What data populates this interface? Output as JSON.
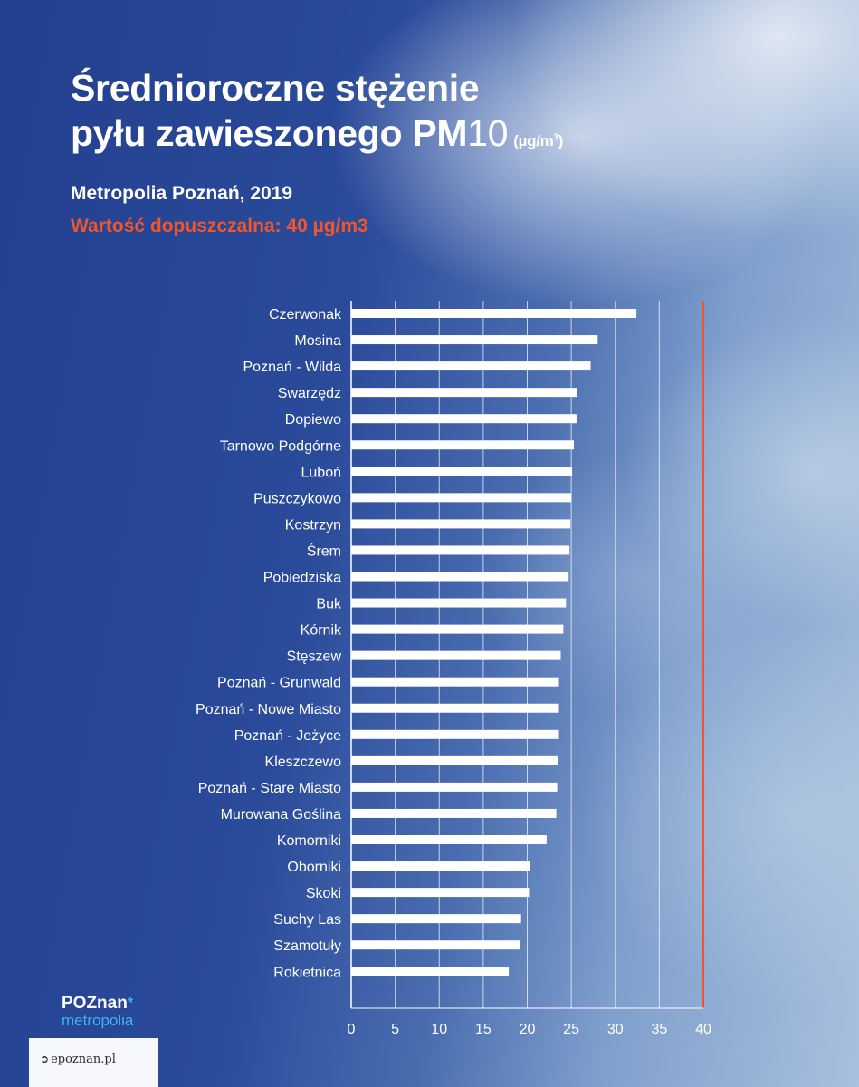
{
  "header": {
    "title_line1": "Średnioroczne stężenie",
    "title_line2_bold": "pyłu zawieszonego PM",
    "title_line2_light": "10",
    "title_unit": "(µg/m",
    "title_unit_sup": "3",
    "title_unit_close": ")",
    "subtitle": "Metropolia Poznań, 2019",
    "limit_note": "Wartość dopuszczalna: 40 µg/m3"
  },
  "colors": {
    "bar": "#ffffff",
    "limit_line": "#f0562b",
    "gridline": "#ffffff",
    "accent_logo": "#3fb3f0"
  },
  "chart_data": {
    "type": "bar",
    "orientation": "horizontal",
    "categories": [
      "Czerwonak",
      "Mosina",
      "Poznań - Wilda",
      "Swarzędz",
      "Dopiewo",
      "Tarnowo Podgórne",
      "Luboń",
      "Puszczykowo",
      "Kostrzyn",
      "Śrem",
      "Pobiedziska",
      "Buk",
      "Kórnik",
      "Stęszew",
      "Poznań - Grunwald",
      "Poznań - Nowe Miasto",
      "Poznań - Jeżyce",
      "Kleszczewo",
      "Poznań - Stare Miasto",
      "Murowana Goślina",
      "Komorniki",
      "Oborniki",
      "Skoki",
      "Suchy Las",
      "Szamotuły",
      "Rokietnica"
    ],
    "values": [
      32.4,
      28.0,
      27.2,
      25.7,
      25.6,
      25.3,
      25.1,
      25.0,
      24.9,
      24.8,
      24.7,
      24.4,
      24.1,
      23.8,
      23.6,
      23.6,
      23.6,
      23.5,
      23.4,
      23.3,
      22.2,
      20.3,
      20.2,
      19.3,
      19.2,
      17.9
    ],
    "xlim": [
      0,
      40
    ],
    "xticks": [
      "0",
      "5",
      "10",
      "15",
      "20",
      "25",
      "30",
      "35",
      "40"
    ],
    "limit_value": 40,
    "grid": "vertical"
  },
  "logo": {
    "brand": "POZnan",
    "brand_star": "*",
    "brand_sub": "metropolia"
  },
  "source": {
    "icon": "bird-icon",
    "text": "epoznan.pl"
  }
}
